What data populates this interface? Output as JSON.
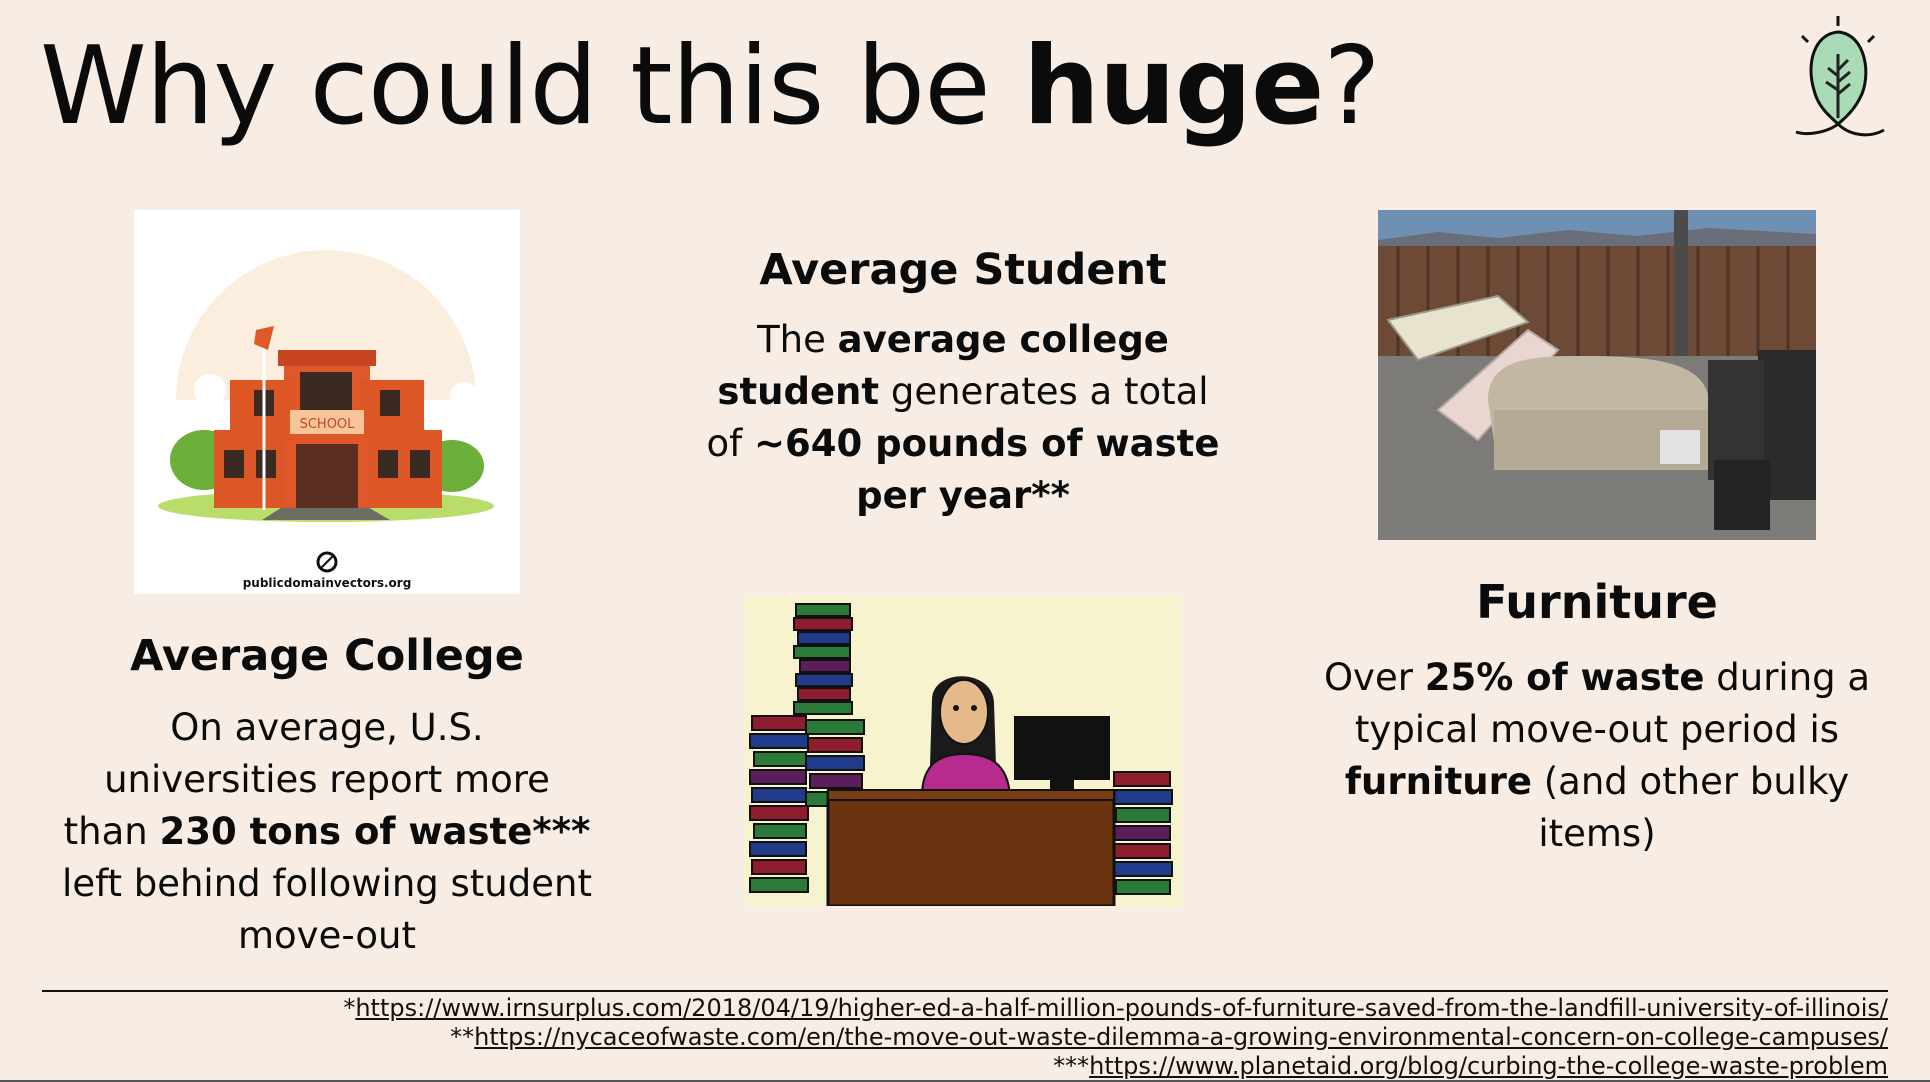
{
  "title": {
    "normal": "Why could this be ",
    "bold": "huge",
    "end": "?"
  },
  "college": {
    "image_caption": "publicdomainvectors.org",
    "sign_text": "SCHOOL",
    "heading": "Average College",
    "t1": "On average, U.S. universities report more than ",
    "b1": "230 tons of waste***",
    "t2": " left behind following student move-out"
  },
  "student": {
    "heading": "Average Student",
    "t1": "The ",
    "b1": "average college student",
    "t2": " generates a total of ",
    "b2": "~640 pounds of waste per year**"
  },
  "furniture": {
    "heading": "Furniture",
    "t1": "Over ",
    "b1": "25% of waste",
    "t2": " during a typical move-out period is ",
    "b2": "furniture",
    "t3": " (and other bulky items)"
  },
  "references": [
    {
      "prefix": "*",
      "url": "https://www.irnsurplus.com/2018/04/19/higher-ed-a-half-million-pounds-of-furniture-saved-from-the-landfill-university-of-illinois/"
    },
    {
      "prefix": "**",
      "url": "https://nycaceofwaste.com/en/the-move-out-waste-dilemma-a-growing-environmental-concern-on-college-campuses/"
    },
    {
      "prefix": "***",
      "url": "https://www.planetaid.org/blog/curbing-the-college-waste-problem"
    }
  ],
  "colors": {
    "background": "#f8ede4",
    "text": "#0b0b0b",
    "logo_leaf": "#a9dbb6"
  },
  "icons": [
    "leaf-logo-icon",
    "public-domain-icon"
  ]
}
